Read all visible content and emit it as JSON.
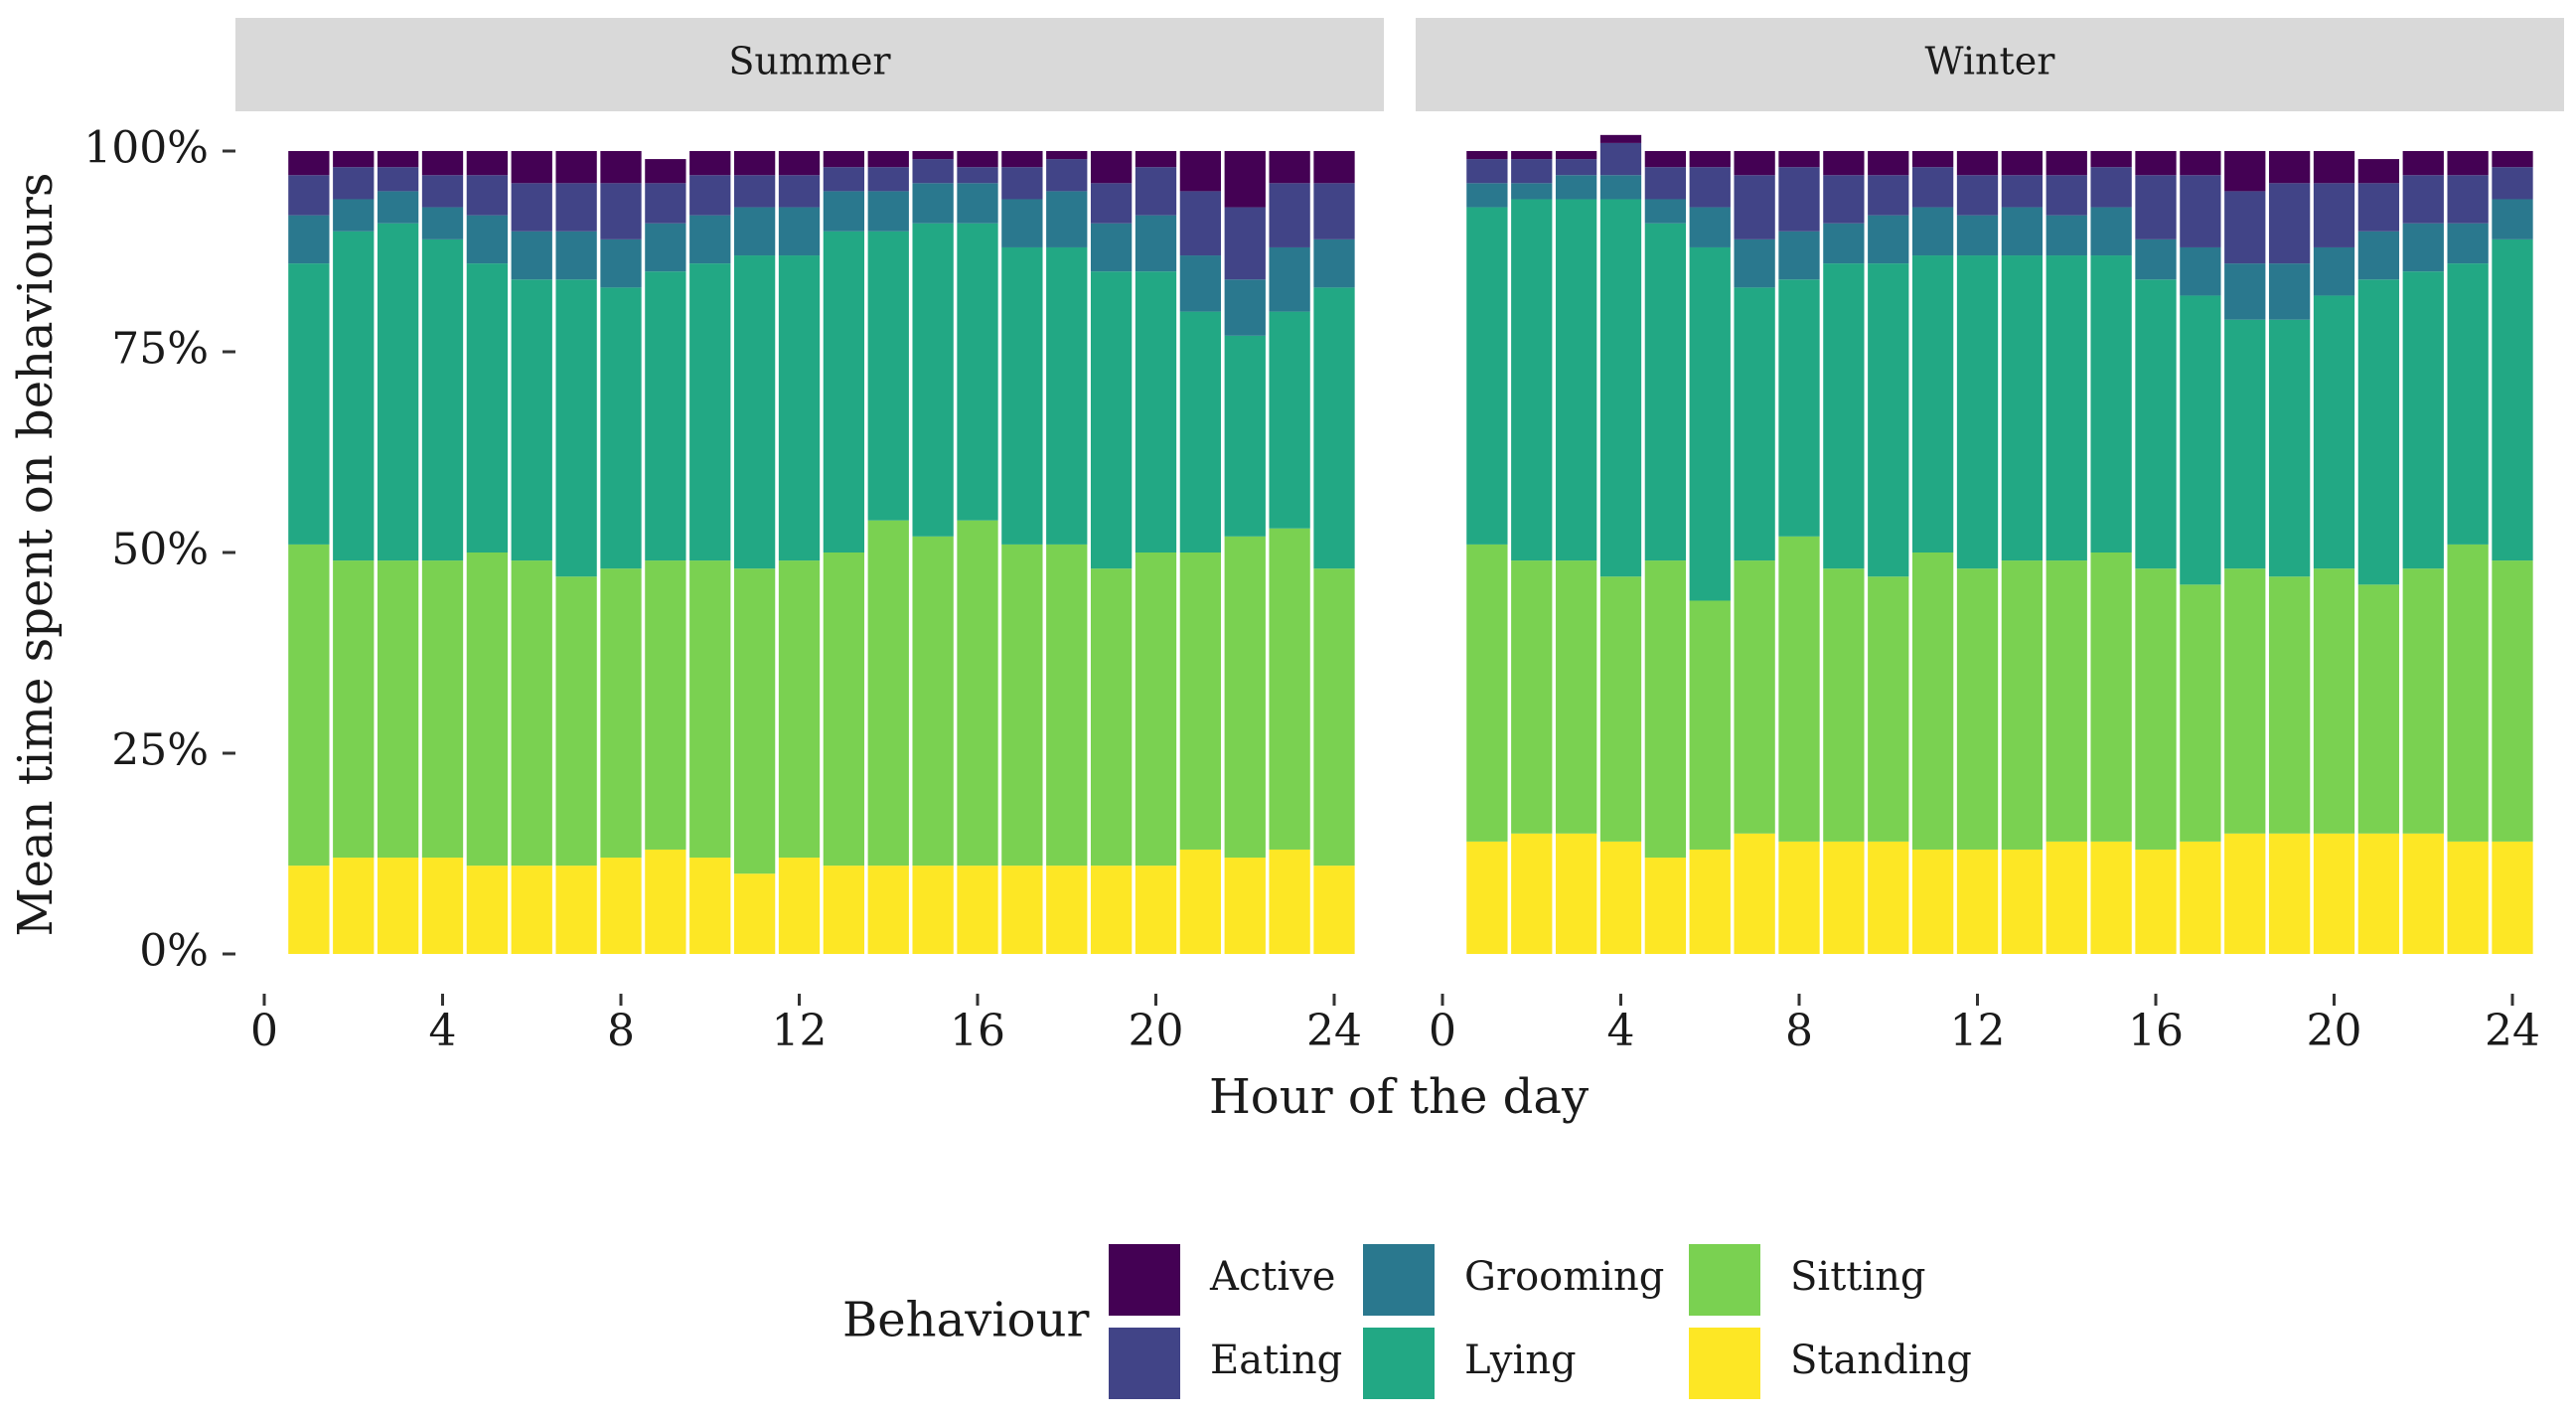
{
  "chart_data": {
    "type": "bar",
    "stacked": true,
    "ylabel": "Mean time spent on behaviours",
    "xlabel": "Hour of the day",
    "ylim": [
      0,
      1
    ],
    "y_ticks": [
      "0%",
      "25%",
      "50%",
      "75%",
      "100%"
    ],
    "x_ticks": [
      "0",
      "4",
      "8",
      "12",
      "16",
      "20",
      "24"
    ],
    "x_domain": [
      0,
      24
    ],
    "categories": [
      1,
      2,
      3,
      4,
      5,
      6,
      7,
      8,
      9,
      10,
      11,
      12,
      13,
      14,
      15,
      16,
      17,
      18,
      19,
      20,
      21,
      22,
      23,
      24
    ],
    "legend": {
      "title": "Behaviour",
      "position": "bottom",
      "items": [
        "Active",
        "Eating",
        "Grooming",
        "Lying",
        "Sitting",
        "Standing"
      ]
    },
    "colors": {
      "Active": "#440154",
      "Eating": "#414487",
      "Grooming": "#2A788E",
      "Lying": "#22A884",
      "Sitting": "#7AD151",
      "Standing": "#FDE725"
    },
    "stack_order_bottom_to_top": [
      "Standing",
      "Sitting",
      "Lying",
      "Grooming",
      "Eating",
      "Active"
    ],
    "panels": [
      {
        "title": "Summer",
        "series": [
          {
            "name": "Standing",
            "values": [
              0.11,
              0.12,
              0.12,
              0.12,
              0.11,
              0.11,
              0.11,
              0.12,
              0.13,
              0.12,
              0.1,
              0.12,
              0.11,
              0.11,
              0.11,
              0.11,
              0.11,
              0.11,
              0.11,
              0.11,
              0.13,
              0.12,
              0.13,
              0.11
            ]
          },
          {
            "name": "Sitting",
            "values": [
              0.4,
              0.37,
              0.37,
              0.37,
              0.39,
              0.38,
              0.36,
              0.36,
              0.36,
              0.37,
              0.38,
              0.37,
              0.39,
              0.43,
              0.41,
              0.43,
              0.4,
              0.4,
              0.37,
              0.39,
              0.37,
              0.4,
              0.4,
              0.37
            ]
          },
          {
            "name": "Lying",
            "values": [
              0.35,
              0.41,
              0.42,
              0.4,
              0.36,
              0.35,
              0.37,
              0.35,
              0.36,
              0.37,
              0.39,
              0.38,
              0.4,
              0.36,
              0.39,
              0.37,
              0.37,
              0.37,
              0.37,
              0.35,
              0.3,
              0.25,
              0.27,
              0.35
            ]
          },
          {
            "name": "Grooming",
            "values": [
              0.06,
              0.04,
              0.04,
              0.04,
              0.06,
              0.06,
              0.06,
              0.06,
              0.06,
              0.06,
              0.06,
              0.06,
              0.05,
              0.05,
              0.05,
              0.05,
              0.06,
              0.07,
              0.06,
              0.07,
              0.07,
              0.07,
              0.08,
              0.06
            ]
          },
          {
            "name": "Eating",
            "values": [
              0.05,
              0.04,
              0.03,
              0.04,
              0.05,
              0.06,
              0.06,
              0.07,
              0.05,
              0.05,
              0.04,
              0.04,
              0.03,
              0.03,
              0.03,
              0.02,
              0.04,
              0.04,
              0.05,
              0.06,
              0.08,
              0.09,
              0.08,
              0.07
            ]
          },
          {
            "name": "Active",
            "values": [
              0.03,
              0.02,
              0.02,
              0.03,
              0.03,
              0.04,
              0.04,
              0.04,
              0.03,
              0.03,
              0.03,
              0.03,
              0.02,
              0.02,
              0.01,
              0.02,
              0.02,
              0.01,
              0.04,
              0.02,
              0.05,
              0.07,
              0.04,
              0.04
            ]
          }
        ]
      },
      {
        "title": "Winter",
        "series": [
          {
            "name": "Standing",
            "values": [
              0.14,
              0.15,
              0.15,
              0.14,
              0.12,
              0.13,
              0.15,
              0.14,
              0.14,
              0.14,
              0.13,
              0.13,
              0.13,
              0.14,
              0.14,
              0.13,
              0.14,
              0.15,
              0.15,
              0.15,
              0.15,
              0.15,
              0.14,
              0.14
            ]
          },
          {
            "name": "Sitting",
            "values": [
              0.37,
              0.34,
              0.34,
              0.33,
              0.37,
              0.31,
              0.34,
              0.38,
              0.34,
              0.33,
              0.37,
              0.35,
              0.36,
              0.35,
              0.36,
              0.35,
              0.32,
              0.33,
              0.32,
              0.33,
              0.31,
              0.33,
              0.37,
              0.35
            ]
          },
          {
            "name": "Lying",
            "values": [
              0.42,
              0.45,
              0.45,
              0.47,
              0.42,
              0.44,
              0.34,
              0.32,
              0.38,
              0.39,
              0.37,
              0.39,
              0.38,
              0.38,
              0.37,
              0.36,
              0.36,
              0.31,
              0.32,
              0.34,
              0.38,
              0.37,
              0.35,
              0.4
            ]
          },
          {
            "name": "Grooming",
            "values": [
              0.03,
              0.02,
              0.03,
              0.03,
              0.03,
              0.05,
              0.06,
              0.06,
              0.05,
              0.06,
              0.06,
              0.05,
              0.06,
              0.05,
              0.06,
              0.05,
              0.06,
              0.07,
              0.07,
              0.06,
              0.06,
              0.06,
              0.05,
              0.05
            ]
          },
          {
            "name": "Eating",
            "values": [
              0.03,
              0.03,
              0.02,
              0.04,
              0.04,
              0.05,
              0.08,
              0.08,
              0.06,
              0.05,
              0.05,
              0.05,
              0.04,
              0.05,
              0.05,
              0.08,
              0.09,
              0.09,
              0.1,
              0.08,
              0.06,
              0.06,
              0.06,
              0.04
            ]
          },
          {
            "name": "Active",
            "values": [
              0.01,
              0.01,
              0.01,
              0.01,
              0.02,
              0.02,
              0.03,
              0.02,
              0.03,
              0.03,
              0.02,
              0.03,
              0.03,
              0.03,
              0.02,
              0.03,
              0.03,
              0.05,
              0.04,
              0.04,
              0.03,
              0.03,
              0.03,
              0.02
            ]
          }
        ]
      }
    ]
  }
}
